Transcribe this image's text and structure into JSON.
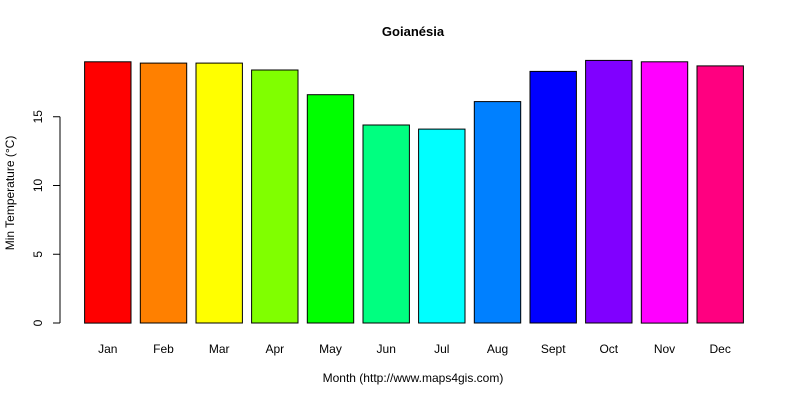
{
  "chart_data": {
    "type": "bar",
    "title": "Goianésia",
    "xlabel": "Month (http://www.maps4gis.com)",
    "ylabel": "Min Temperature (°C)",
    "ylim": [
      0,
      19
    ],
    "yticks": [
      0,
      5,
      10,
      15
    ],
    "grid": false,
    "legend": "none",
    "categories": [
      "Jan",
      "Feb",
      "Mar",
      "Apr",
      "May",
      "Jun",
      "Jul",
      "Aug",
      "Sept",
      "Oct",
      "Nov",
      "Dec"
    ],
    "values": [
      19.0,
      18.9,
      18.9,
      18.4,
      16.6,
      14.4,
      14.1,
      16.1,
      18.3,
      19.1,
      19.0,
      18.7
    ],
    "colors": [
      "#FF0000",
      "#FF8000",
      "#FFFF00",
      "#80FF00",
      "#00FF00",
      "#00FF80",
      "#00FFFF",
      "#0080FF",
      "#0000FF",
      "#8000FF",
      "#FF00FF",
      "#FF0080"
    ]
  }
}
